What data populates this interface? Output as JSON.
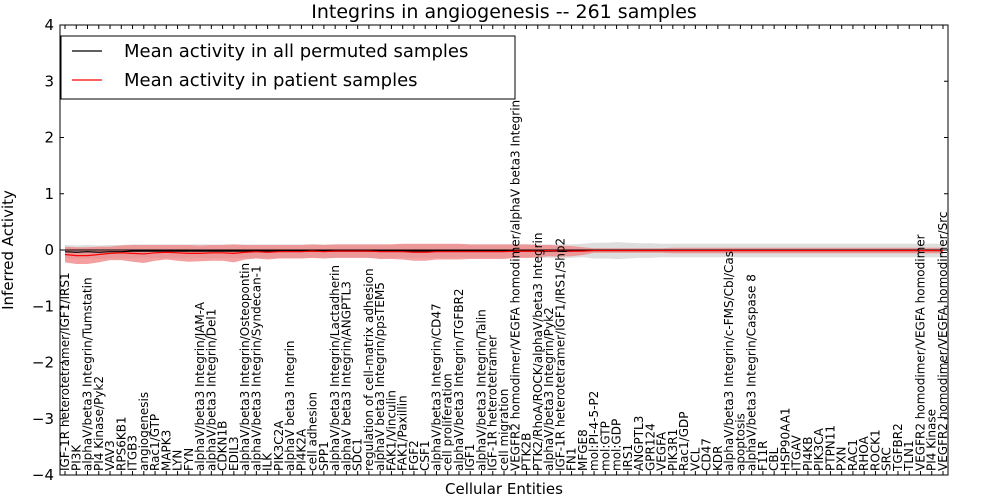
{
  "chart_data": {
    "type": "line",
    "title": "Integrins in angiogenesis -- 261 samples",
    "xlabel": "Cellular Entities",
    "ylabel": "Inferred Activity",
    "ylim": [
      -4,
      4
    ],
    "yticks": [
      -4,
      -3,
      -2,
      -1,
      0,
      1,
      2,
      3,
      4
    ],
    "ytick_labels": [
      "−4",
      "−3",
      "−2",
      "−1",
      "0",
      "1",
      "2",
      "3",
      "4"
    ],
    "legend": {
      "placement": "top-left",
      "entries": [
        {
          "label": "Mean activity in all permuted samples",
          "color": "#000000"
        },
        {
          "label": "Mean activity in patient samples",
          "color": "#ff0000"
        }
      ]
    },
    "categories": [
      "IGF-1R heterotetramer/IGF1/IRS1",
      "PI3K",
      "alphaV/beta3 Integrin/Tumstatin",
      "PI4 Kinase/Pyk2",
      "VAV3",
      "RPS6KB1",
      "ITGB3",
      "angiogenesis",
      "Rac1/GTP",
      "MAPK3",
      "LYN",
      "FYN",
      "alphaV/beta3 Integrin/JAM-A",
      "alphaV/beta3 Integrin/Del1",
      "CDKN1B",
      "EDIL3",
      "alphaV/beta3 Integrin/Osteopontin",
      "alphaV/beta3 Integrin/Syndecan-1",
      "ILK",
      "PIK3C2A",
      "alphaV beta3 Integrin",
      "PI4K2A",
      "cell adhesion",
      "SPP1",
      "alphaV/beta3 Integrin/Lactadherin",
      "alphaV beta3 Integrin/ANGPTL3",
      "SDC1",
      "regulation of cell-matrix adhesion",
      "alphaV beta3 Integrin/ppsTEM5",
      "FAK1/Vinculin",
      "FAK1/Paxillin",
      "FGF2",
      "CSF1",
      "alphaV/beta3 Integrin/CD47",
      "cell proliferation",
      "alphaV/beta3 Integrin/TGFBR2",
      "IGF1",
      "alphaV/beta3 Integrin/Talin",
      "IGF-1R heterotetramer",
      "cell migration",
      "VEGFR2 homodimer/VEGFA homodimer/alphaV beta3 Integrin",
      "PTK2B",
      "PTK2/RhoA/ROCK/alphaV/beta3 Integrin",
      "alphaV/beta3 Integrin/Pyk2",
      "IGF-1R heterotetramer/IGF1/IRS1/Shp2",
      "FN1",
      "MFGE8",
      "mol:PI-4-5-P2",
      "mol:GTP",
      "mol:GDP",
      "IRS1",
      "ANGPTL3",
      "GPR124",
      "VEGFA",
      "PIK3R1",
      "Rac1/GDP",
      "VCL",
      "CD47",
      "KDR",
      "alphaV/beta3 Integrin/c-FMS/Cbl/Cas",
      "apoptosis",
      "alphaV/beta3 Integrin/Caspase 8",
      "F11R",
      "CBL",
      "HSP90AA1",
      "ITGAV",
      "PI4KB",
      "PIK3CA",
      "PTPN11",
      "PXN",
      "RAC1",
      "RHOA",
      "ROCK1",
      "SRC",
      "TGFBR2",
      "TLN1",
      "VEGFR2 homodimer/VEGFA homodimer",
      "PI4 Kinase",
      "VEGFR2 homodimer/VEGFA homodimer/Src"
    ],
    "series": [
      {
        "name": "Mean activity in all permuted samples",
        "color": "#000000",
        "values": [
          -0.03,
          -0.04,
          -0.03,
          -0.04,
          -0.03,
          -0.03,
          -0.02,
          -0.02,
          -0.02,
          -0.02,
          -0.02,
          -0.02,
          -0.02,
          -0.02,
          -0.02,
          -0.02,
          -0.02,
          -0.02,
          -0.02,
          -0.02,
          -0.02,
          -0.02,
          -0.02,
          -0.02,
          -0.02,
          -0.02,
          -0.02,
          -0.02,
          -0.02,
          -0.02,
          -0.02,
          -0.02,
          -0.02,
          -0.02,
          -0.02,
          -0.02,
          -0.02,
          -0.02,
          -0.02,
          -0.02,
          -0.02,
          -0.02,
          -0.02,
          -0.02,
          -0.02,
          -0.02,
          -0.01,
          -0.01,
          -0.01,
          -0.01,
          -0.01,
          -0.01,
          -0.01,
          -0.01,
          -0.01,
          -0.01,
          -0.01,
          -0.01,
          -0.01,
          -0.01,
          -0.01,
          -0.01,
          -0.01,
          -0.01,
          -0.01,
          -0.01,
          -0.01,
          -0.01,
          -0.01,
          -0.01,
          -0.01,
          -0.01,
          -0.01,
          -0.01,
          -0.01,
          -0.01,
          -0.01,
          -0.01,
          -0.01
        ],
        "band": [
          0.12,
          0.12,
          0.12,
          0.12,
          0.12,
          0.12,
          0.12,
          0.12,
          0.12,
          0.12,
          0.12,
          0.12,
          0.12,
          0.12,
          0.12,
          0.12,
          0.12,
          0.12,
          0.12,
          0.12,
          0.12,
          0.12,
          0.12,
          0.12,
          0.12,
          0.12,
          0.12,
          0.12,
          0.12,
          0.12,
          0.12,
          0.12,
          0.12,
          0.12,
          0.12,
          0.12,
          0.12,
          0.12,
          0.12,
          0.12,
          0.12,
          0.12,
          0.12,
          0.12,
          0.12,
          0.12,
          0.12,
          0.14,
          0.14,
          0.15,
          0.14,
          0.13,
          0.13,
          0.12,
          0.12,
          0.12,
          0.12,
          0.12,
          0.12,
          0.12,
          0.12,
          0.12,
          0.12,
          0.12,
          0.12,
          0.12,
          0.12,
          0.12,
          0.12,
          0.12,
          0.12,
          0.12,
          0.12,
          0.12,
          0.12,
          0.12,
          0.12,
          0.12,
          0.12
        ]
      },
      {
        "name": "Mean activity in patient samples",
        "color": "#ff0000",
        "values": [
          -0.08,
          -0.1,
          -0.1,
          -0.08,
          -0.06,
          -0.05,
          -0.06,
          -0.07,
          -0.05,
          -0.04,
          -0.05,
          -0.06,
          -0.06,
          -0.05,
          -0.05,
          -0.06,
          -0.04,
          -0.03,
          -0.04,
          -0.03,
          -0.03,
          -0.03,
          -0.02,
          -0.03,
          -0.02,
          -0.02,
          -0.02,
          -0.02,
          -0.03,
          -0.03,
          -0.03,
          -0.04,
          -0.04,
          -0.03,
          -0.03,
          -0.03,
          -0.03,
          -0.03,
          -0.03,
          -0.03,
          -0.02,
          -0.02,
          -0.02,
          -0.01,
          -0.02,
          -0.02,
          -0.02,
          -0.01,
          -0.01,
          -0.01,
          -0.01,
          -0.01,
          -0.01,
          -0.01,
          -0.01,
          -0.01,
          -0.01,
          -0.01,
          -0.01,
          -0.01,
          -0.01,
          -0.01,
          -0.01,
          -0.01,
          -0.01,
          -0.01,
          -0.01,
          -0.01,
          -0.01,
          -0.01,
          -0.01,
          -0.01,
          -0.01,
          -0.01,
          -0.01,
          -0.01,
          -0.01,
          -0.01,
          -0.01
        ],
        "band": [
          0.14,
          0.15,
          0.15,
          0.14,
          0.12,
          0.13,
          0.15,
          0.16,
          0.14,
          0.13,
          0.14,
          0.15,
          0.14,
          0.14,
          0.14,
          0.16,
          0.13,
          0.12,
          0.13,
          0.12,
          0.12,
          0.12,
          0.12,
          0.12,
          0.12,
          0.12,
          0.12,
          0.12,
          0.13,
          0.13,
          0.14,
          0.15,
          0.15,
          0.14,
          0.14,
          0.14,
          0.13,
          0.13,
          0.13,
          0.13,
          0.12,
          0.12,
          0.11,
          0.1,
          0.1,
          0.09,
          0.07,
          0.04,
          0.04,
          0.04,
          0.04,
          0.04,
          0.04,
          0.04,
          0.05,
          0.05,
          0.05,
          0.05,
          0.05,
          0.05,
          0.05,
          0.05,
          0.05,
          0.05,
          0.05,
          0.05,
          0.05,
          0.05,
          0.05,
          0.05,
          0.05,
          0.05,
          0.05,
          0.05,
          0.05,
          0.05,
          0.05,
          0.05,
          0.05
        ]
      }
    ]
  }
}
